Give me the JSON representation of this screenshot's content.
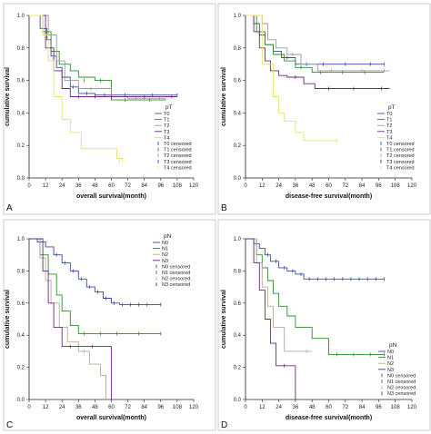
{
  "figure": {
    "panels": [
      "A",
      "B",
      "C",
      "D"
    ]
  },
  "chart_data": [
    {
      "type": "line",
      "panel_label": "A",
      "xlabel": "overall survival(month)",
      "ylabel": "cumulative survival",
      "xlim": [
        0,
        120
      ],
      "ylim": [
        0,
        1.0
      ],
      "xticks": [
        "0",
        "12",
        "24",
        "36",
        "48",
        "60",
        "72",
        "84",
        "96",
        "108",
        "120"
      ],
      "yticks": [
        "0.0",
        "0.2",
        "0.4",
        "0.6",
        "0.8",
        "1.0"
      ],
      "legend_title": "pT",
      "legend_position": "right",
      "legend_labels": [
        "T0",
        "T1",
        "T2",
        "T3",
        "T4",
        "T0 censored",
        "T1 censored",
        "T2 censored",
        "T3 censored",
        "T4 censored"
      ],
      "series": [
        {
          "name": "T0",
          "color": "#3b4a9e",
          "x": [
            0,
            8,
            13,
            16,
            20,
            24,
            30,
            36,
            48,
            108
          ],
          "y": [
            1.0,
            0.92,
            0.85,
            0.75,
            0.68,
            0.62,
            0.56,
            0.52,
            0.51,
            0.51
          ],
          "censored": [
            [
              32,
              0.56
            ],
            [
              42,
              0.52
            ],
            [
              55,
              0.51
            ],
            [
              70,
              0.51
            ],
            [
              90,
              0.51
            ],
            [
              108,
              0.51
            ]
          ]
        },
        {
          "name": "T1",
          "color": "#2e8b2e",
          "x": [
            0,
            10,
            16,
            22,
            30,
            36,
            48,
            60,
            100
          ],
          "y": [
            1.0,
            0.9,
            0.78,
            0.7,
            0.66,
            0.62,
            0.6,
            0.48,
            0.48
          ],
          "censored": [
            [
              40,
              0.6
            ],
            [
              52,
              0.6
            ],
            [
              70,
              0.48
            ],
            [
              88,
              0.48
            ]
          ]
        },
        {
          "name": "T2",
          "color": "#9a9a9a",
          "x": [
            0,
            14,
            20,
            26,
            36,
            60,
            72,
            100
          ],
          "y": [
            1.0,
            0.88,
            0.72,
            0.6,
            0.55,
            0.5,
            0.49,
            0.49
          ],
          "censored": [
            [
              30,
              0.6
            ],
            [
              45,
              0.55
            ],
            [
              78,
              0.49
            ],
            [
              95,
              0.49
            ]
          ]
        },
        {
          "name": "T3",
          "color": "#6a2a7a",
          "x": [
            0,
            12,
            18,
            24,
            30,
            108
          ],
          "y": [
            1.0,
            0.8,
            0.66,
            0.55,
            0.5,
            0.5
          ],
          "censored": [
            [
              36,
              0.5
            ],
            [
              48,
              0.5
            ],
            [
              60,
              0.5
            ],
            [
              84,
              0.5
            ],
            [
              104,
              0.5
            ]
          ]
        },
        {
          "name": "T4",
          "color": "#e8e070",
          "x": [
            0,
            10,
            14,
            18,
            24,
            30,
            38,
            60,
            64,
            68
          ],
          "y": [
            1.0,
            0.88,
            0.72,
            0.5,
            0.36,
            0.28,
            0.18,
            0.18,
            0.12,
            0.1
          ],
          "censored": [
            [
              66,
              0.1
            ]
          ]
        }
      ]
    },
    {
      "type": "line",
      "panel_label": "B",
      "xlabel": "disease-free survival(month)",
      "ylabel": "cumulative survival",
      "xlim": [
        0,
        120
      ],
      "ylim": [
        0,
        1.0
      ],
      "xticks": [
        "0",
        "12",
        "24",
        "36",
        "48",
        "60",
        "72",
        "84",
        "96",
        "108",
        "120"
      ],
      "yticks": [
        "0.0",
        "0.2",
        "0.4",
        "0.6",
        "0.8",
        "1.0"
      ],
      "legend_title": "pT",
      "legend_position": "right",
      "legend_labels": [
        "T0",
        "T1",
        "T2",
        "T3",
        "T4",
        "T0 censored",
        "T1 censored",
        "T2 censored",
        "T3 censored",
        "T4 censored"
      ],
      "series": [
        {
          "name": "T0",
          "color": "#3b4a9e",
          "x": [
            0,
            6,
            10,
            14,
            20,
            26,
            36,
            48,
            100
          ],
          "y": [
            1.0,
            0.95,
            0.88,
            0.82,
            0.78,
            0.74,
            0.7,
            0.7,
            0.7
          ],
          "censored": [
            [
              30,
              0.74
            ],
            [
              44,
              0.7
            ],
            [
              56,
              0.7
            ],
            [
              72,
              0.7
            ],
            [
              90,
              0.7
            ],
            [
              100,
              0.7
            ]
          ]
        },
        {
          "name": "T1",
          "color": "#2e8b2e",
          "x": [
            0,
            8,
            14,
            20,
            28,
            36,
            48,
            100
          ],
          "y": [
            1.0,
            0.9,
            0.82,
            0.76,
            0.72,
            0.68,
            0.65,
            0.65
          ],
          "censored": [
            [
              40,
              0.68
            ],
            [
              54,
              0.65
            ],
            [
              70,
              0.65
            ],
            [
              86,
              0.65
            ]
          ]
        },
        {
          "name": "T2",
          "color": "#9a9a9a",
          "x": [
            0,
            12,
            16,
            22,
            30,
            40,
            52,
            104
          ],
          "y": [
            1.0,
            0.95,
            0.85,
            0.8,
            0.76,
            0.7,
            0.66,
            0.66
          ],
          "censored": [
            [
              34,
              0.76
            ],
            [
              62,
              0.66
            ],
            [
              84,
              0.66
            ],
            [
              100,
              0.66
            ]
          ]
        },
        {
          "name": "T3",
          "color": "#6a2a7a",
          "x": [
            0,
            6,
            10,
            14,
            18,
            24,
            30,
            42,
            50,
            104
          ],
          "y": [
            1.0,
            0.9,
            0.8,
            0.72,
            0.66,
            0.63,
            0.62,
            0.58,
            0.55,
            0.55
          ],
          "censored": [
            [
              36,
              0.62
            ],
            [
              60,
              0.55
            ],
            [
              78,
              0.55
            ],
            [
              98,
              0.55
            ]
          ]
        },
        {
          "name": "T4",
          "color": "#e8e070",
          "x": [
            0,
            12,
            20,
            24,
            28,
            36,
            42,
            66
          ],
          "y": [
            1.0,
            0.7,
            0.5,
            0.4,
            0.35,
            0.28,
            0.23,
            0.23
          ],
          "censored": [
            [
              66,
              0.23
            ]
          ]
        }
      ]
    },
    {
      "type": "line",
      "panel_label": "C",
      "xlabel": "overall survival(month)",
      "ylabel": "cumulative survival",
      "xlim": [
        0,
        120
      ],
      "ylim": [
        0,
        1.0
      ],
      "xticks": [
        "0",
        "12",
        "24",
        "36",
        "48",
        "60",
        "72",
        "84",
        "96",
        "108",
        "120"
      ],
      "yticks": [
        "0.0",
        "0.2",
        "0.4",
        "0.6",
        "0.8",
        "1.0"
      ],
      "legend_title": "pN",
      "legend_position": "top-right",
      "legend_labels": [
        "N0",
        "N1",
        "N2",
        "N3",
        "N0 censored",
        "N1 censored",
        "N2 censored",
        "N3 censored"
      ],
      "series": [
        {
          "name": "N0",
          "color": "#3b4a9e",
          "x": [
            0,
            6,
            12,
            18,
            24,
            30,
            36,
            42,
            48,
            54,
            60,
            66,
            96
          ],
          "y": [
            1.0,
            0.98,
            0.95,
            0.9,
            0.85,
            0.8,
            0.75,
            0.7,
            0.67,
            0.63,
            0.6,
            0.59,
            0.59
          ],
          "censored": [
            [
              20,
              0.9
            ],
            [
              26,
              0.85
            ],
            [
              32,
              0.8
            ],
            [
              38,
              0.75
            ],
            [
              44,
              0.7
            ],
            [
              50,
              0.67
            ],
            [
              56,
              0.63
            ],
            [
              62,
              0.6
            ],
            [
              68,
              0.59
            ],
            [
              74,
              0.59
            ],
            [
              80,
              0.59
            ],
            [
              86,
              0.59
            ],
            [
              96,
              0.59
            ]
          ]
        },
        {
          "name": "N1",
          "color": "#2e8b2e",
          "x": [
            0,
            8,
            14,
            20,
            24,
            30,
            36,
            96
          ],
          "y": [
            1.0,
            0.9,
            0.78,
            0.65,
            0.55,
            0.46,
            0.41,
            0.41
          ],
          "censored": [
            [
              40,
              0.41
            ],
            [
              52,
              0.41
            ],
            [
              64,
              0.41
            ],
            [
              80,
              0.41
            ],
            [
              96,
              0.41
            ]
          ]
        },
        {
          "name": "N2",
          "color": "#b7a99a",
          "x": [
            0,
            8,
            12,
            16,
            22,
            28,
            36,
            44,
            52,
            56
          ],
          "y": [
            1.0,
            0.88,
            0.74,
            0.6,
            0.45,
            0.36,
            0.3,
            0.22,
            0.15,
            0.0
          ],
          "censored": [
            [
              40,
              0.3
            ]
          ]
        },
        {
          "name": "N3",
          "color": "#6a2a7a",
          "x": [
            0,
            10,
            14,
            18,
            24,
            60,
            60
          ],
          "y": [
            1.0,
            0.8,
            0.6,
            0.45,
            0.33,
            0.33,
            0.0
          ],
          "censored": [
            [
              30,
              0.33
            ],
            [
              46,
              0.33
            ]
          ]
        }
      ]
    },
    {
      "type": "line",
      "panel_label": "D",
      "xlabel": "disease-free survival(month)",
      "ylabel": "cumulative survival",
      "xlim": [
        0,
        120
      ],
      "ylim": [
        0,
        1.0
      ],
      "xticks": [
        "0",
        "12",
        "24",
        "36",
        "48",
        "60",
        "72",
        "84",
        "96",
        "108",
        "120"
      ],
      "yticks": [
        "0.0",
        "0.2",
        "0.4",
        "0.6",
        "0.8",
        "1.0"
      ],
      "legend_title": "pN",
      "legend_position": "bottom-right",
      "legend_labels": [
        "N0",
        "N1",
        "N2",
        "N3",
        "N0 censored",
        "N1 censored",
        "N2 censored",
        "N3 censored"
      ],
      "series": [
        {
          "name": "N0",
          "color": "#3b4a9e",
          "x": [
            0,
            6,
            10,
            14,
            18,
            24,
            30,
            36,
            42,
            100
          ],
          "y": [
            1.0,
            0.97,
            0.94,
            0.9,
            0.86,
            0.82,
            0.8,
            0.78,
            0.75,
            0.75
          ],
          "censored": [
            [
              16,
              0.9
            ],
            [
              22,
              0.86
            ],
            [
              28,
              0.82
            ],
            [
              34,
              0.8
            ],
            [
              40,
              0.78
            ],
            [
              46,
              0.75
            ],
            [
              52,
              0.75
            ],
            [
              58,
              0.75
            ],
            [
              64,
              0.75
            ],
            [
              70,
              0.75
            ],
            [
              76,
              0.75
            ],
            [
              82,
              0.75
            ],
            [
              88,
              0.75
            ],
            [
              94,
              0.75
            ],
            [
              100,
              0.75
            ]
          ]
        },
        {
          "name": "N1",
          "color": "#2e8b2e",
          "x": [
            0,
            8,
            12,
            16,
            20,
            24,
            30,
            36,
            48,
            60,
            100
          ],
          "y": [
            1.0,
            0.9,
            0.82,
            0.74,
            0.66,
            0.58,
            0.52,
            0.45,
            0.38,
            0.28,
            0.28
          ],
          "censored": [
            [
              66,
              0.28
            ],
            [
              78,
              0.28
            ],
            [
              90,
              0.28
            ],
            [
              100,
              0.28
            ]
          ]
        },
        {
          "name": "N2",
          "color": "#b7a99a",
          "x": [
            0,
            8,
            12,
            16,
            20,
            28,
            40,
            48
          ],
          "y": [
            1.0,
            0.85,
            0.7,
            0.58,
            0.45,
            0.3,
            0.3,
            0.3
          ],
          "censored": [
            [
              44,
              0.3
            ]
          ]
        },
        {
          "name": "N3",
          "color": "#6a2a7a",
          "x": [
            0,
            6,
            10,
            14,
            18,
            22,
            36,
            36
          ],
          "y": [
            1.0,
            0.85,
            0.68,
            0.5,
            0.35,
            0.21,
            0.21,
            0.0
          ],
          "censored": [
            [
              28,
              0.21
            ]
          ]
        }
      ]
    }
  ]
}
